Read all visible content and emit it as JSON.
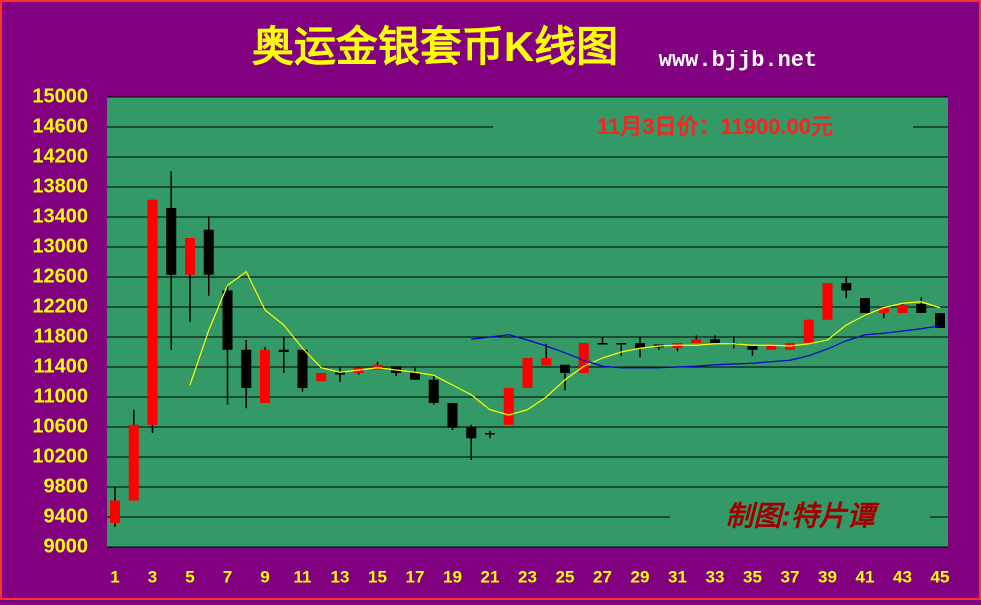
{
  "chart_data": {
    "type": "candlestick",
    "title": "奥运金银套币K线图",
    "subtitle": "www.bjjb.net",
    "annotation": "11月3日价：11900.00元",
    "credit": "制图:特片谭",
    "categories": [
      "1",
      null,
      "3",
      null,
      "5",
      null,
      "7",
      null,
      "9",
      null,
      "11",
      null,
      "13",
      null,
      "15",
      null,
      "17",
      null,
      "19",
      null,
      "21",
      null,
      "23",
      null,
      "25",
      null,
      "27",
      null,
      "29",
      null,
      "31",
      null,
      "33",
      null,
      "35",
      null,
      "37",
      null,
      "39",
      null,
      "41",
      null,
      "43",
      null,
      "45"
    ],
    "open": [
      9320,
      9620,
      10630,
      13520,
      12630,
      13230,
      12420,
      11630,
      10920,
      11630,
      11630,
      11210,
      11330,
      11320,
      11360,
      11410,
      11330,
      11230,
      10920,
      10600,
      10520,
      10630,
      11120,
      11420,
      11430,
      11320,
      11720,
      11720,
      11720,
      11700,
      11650,
      11720,
      11770,
      11720,
      11680,
      11630,
      11630,
      11720,
      12030,
      12520,
      12320,
      12120,
      12120,
      12240,
      12120
    ],
    "high": [
      9800,
      10830,
      13630,
      14010,
      13120,
      13410,
      12500,
      11760,
      11670,
      11810,
      11630,
      11320,
      11390,
      11390,
      11470,
      11410,
      11390,
      11290,
      10920,
      10630,
      10550,
      11120,
      11520,
      11710,
      11430,
      11720,
      11800,
      11720,
      11810,
      11700,
      11720,
      11820,
      11820,
      11810,
      11680,
      11700,
      11720,
      12030,
      12520,
      12610,
      12320,
      12200,
      12250,
      12330,
      12120
    ],
    "low": [
      9270,
      9620,
      10520,
      11630,
      12000,
      12350,
      10900,
      10850,
      10920,
      11320,
      11070,
      11210,
      11200,
      11300,
      11360,
      11280,
      11230,
      10900,
      10560,
      10160,
      10450,
      10630,
      11120,
      11420,
      11090,
      11320,
      11700,
      11550,
      11530,
      11630,
      11610,
      11720,
      11720,
      11650,
      11550,
      11630,
      11630,
      11720,
      12030,
      12320,
      12120,
      12050,
      12120,
      12120,
      11920
    ],
    "close": [
      9620,
      10630,
      13630,
      12630,
      13120,
      12630,
      11630,
      11120,
      11630,
      11600,
      11120,
      11320,
      11300,
      11390,
      11430,
      11320,
      11230,
      10920,
      10590,
      10450,
      10500,
      11120,
      11520,
      11520,
      11320,
      11720,
      11700,
      11700,
      11650,
      11660,
      11720,
      11770,
      11720,
      11700,
      11630,
      11700,
      11720,
      12030,
      12520,
      12420,
      12120,
      12200,
      12230,
      12120,
      11920
    ],
    "up_color": "#ff0000",
    "down_color": "#000000",
    "lines": [
      {
        "color": "#ffff00",
        "values": [
          null,
          null,
          null,
          null,
          11160,
          11890,
          12490,
          12670,
          12160,
          11960,
          11650,
          11390,
          11330,
          11360,
          11390,
          11360,
          11330,
          11290,
          11160,
          11030,
          10830,
          10760,
          10830,
          11000,
          11230,
          11410,
          11520,
          11600,
          11650,
          11680,
          11690,
          11690,
          11710,
          11710,
          11690,
          11690,
          11680,
          11710,
          11760,
          11960,
          12090,
          12190,
          12250,
          12270,
          12190
        ]
      },
      {
        "color": "#0000cc",
        "values": [
          null,
          null,
          null,
          null,
          null,
          null,
          null,
          null,
          null,
          null,
          null,
          null,
          null,
          null,
          null,
          null,
          null,
          null,
          null,
          11770,
          11800,
          11830,
          11760,
          11680,
          11590,
          11490,
          11410,
          11390,
          11390,
          11390,
          11400,
          11410,
          11430,
          11440,
          11450,
          11470,
          11490,
          11550,
          11640,
          11750,
          11830,
          11850,
          11880,
          11910,
          11950
        ]
      }
    ],
    "ylim": [
      9000,
      15000
    ],
    "yticks": [
      9000,
      9400,
      9800,
      10200,
      10600,
      11000,
      11400,
      11800,
      12200,
      12600,
      13000,
      13400,
      13800,
      14200,
      14600,
      15000
    ],
    "grid": true
  }
}
